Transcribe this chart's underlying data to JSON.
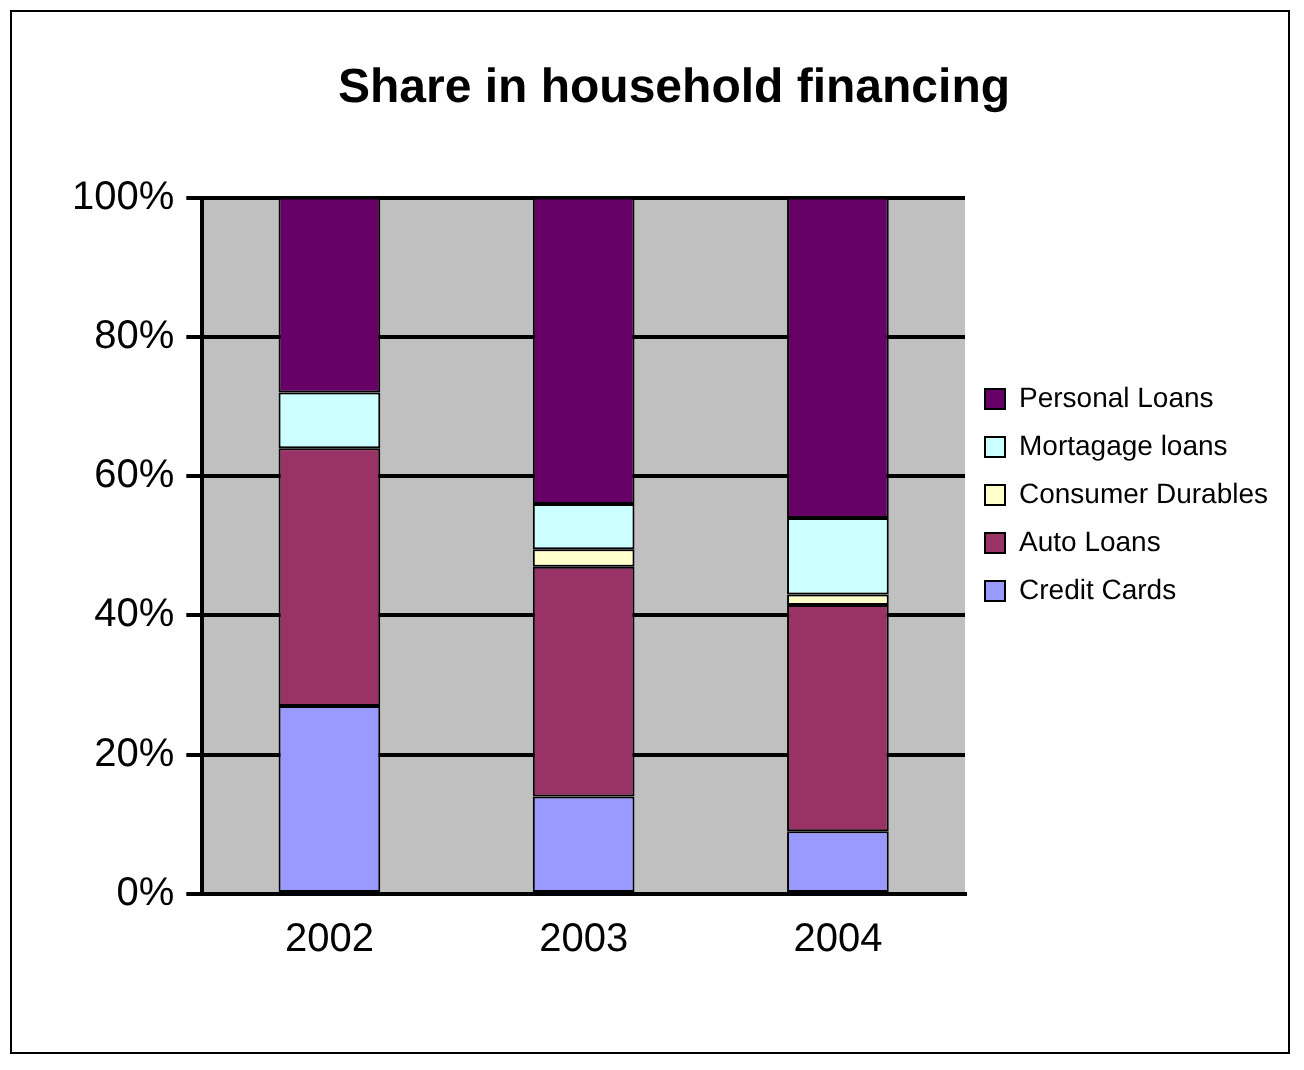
{
  "chart_data": {
    "type": "bar",
    "title": "Share in household financing",
    "categories": [
      "2002",
      "2003",
      "2004"
    ],
    "stacked": true,
    "series": [
      {
        "name": "Credit Cards",
        "color": "#9999ff",
        "values": [
          27,
          14,
          9
        ]
      },
      {
        "name": "Auto Loans",
        "color": "#993366",
        "values": [
          37,
          33,
          32.5
        ]
      },
      {
        "name": "Consumer Durables",
        "color": "#ffffcc",
        "values": [
          0,
          2.5,
          1.5
        ]
      },
      {
        "name": "Mortagage loans",
        "color": "#ccffff",
        "values": [
          8,
          6.5,
          11
        ]
      },
      {
        "name": "Personal Loans",
        "color": "#660066",
        "values": [
          28,
          44,
          46
        ]
      }
    ],
    "ylim": [
      0,
      100
    ],
    "yticks": [
      {
        "value": 0,
        "label": "0%"
      },
      {
        "value": 20,
        "label": "20%"
      },
      {
        "value": 40,
        "label": "40%"
      },
      {
        "value": 60,
        "label": "60%"
      },
      {
        "value": 80,
        "label": "80%"
      },
      {
        "value": 100,
        "label": "100%"
      }
    ],
    "grid": "y",
    "legend": "right"
  }
}
